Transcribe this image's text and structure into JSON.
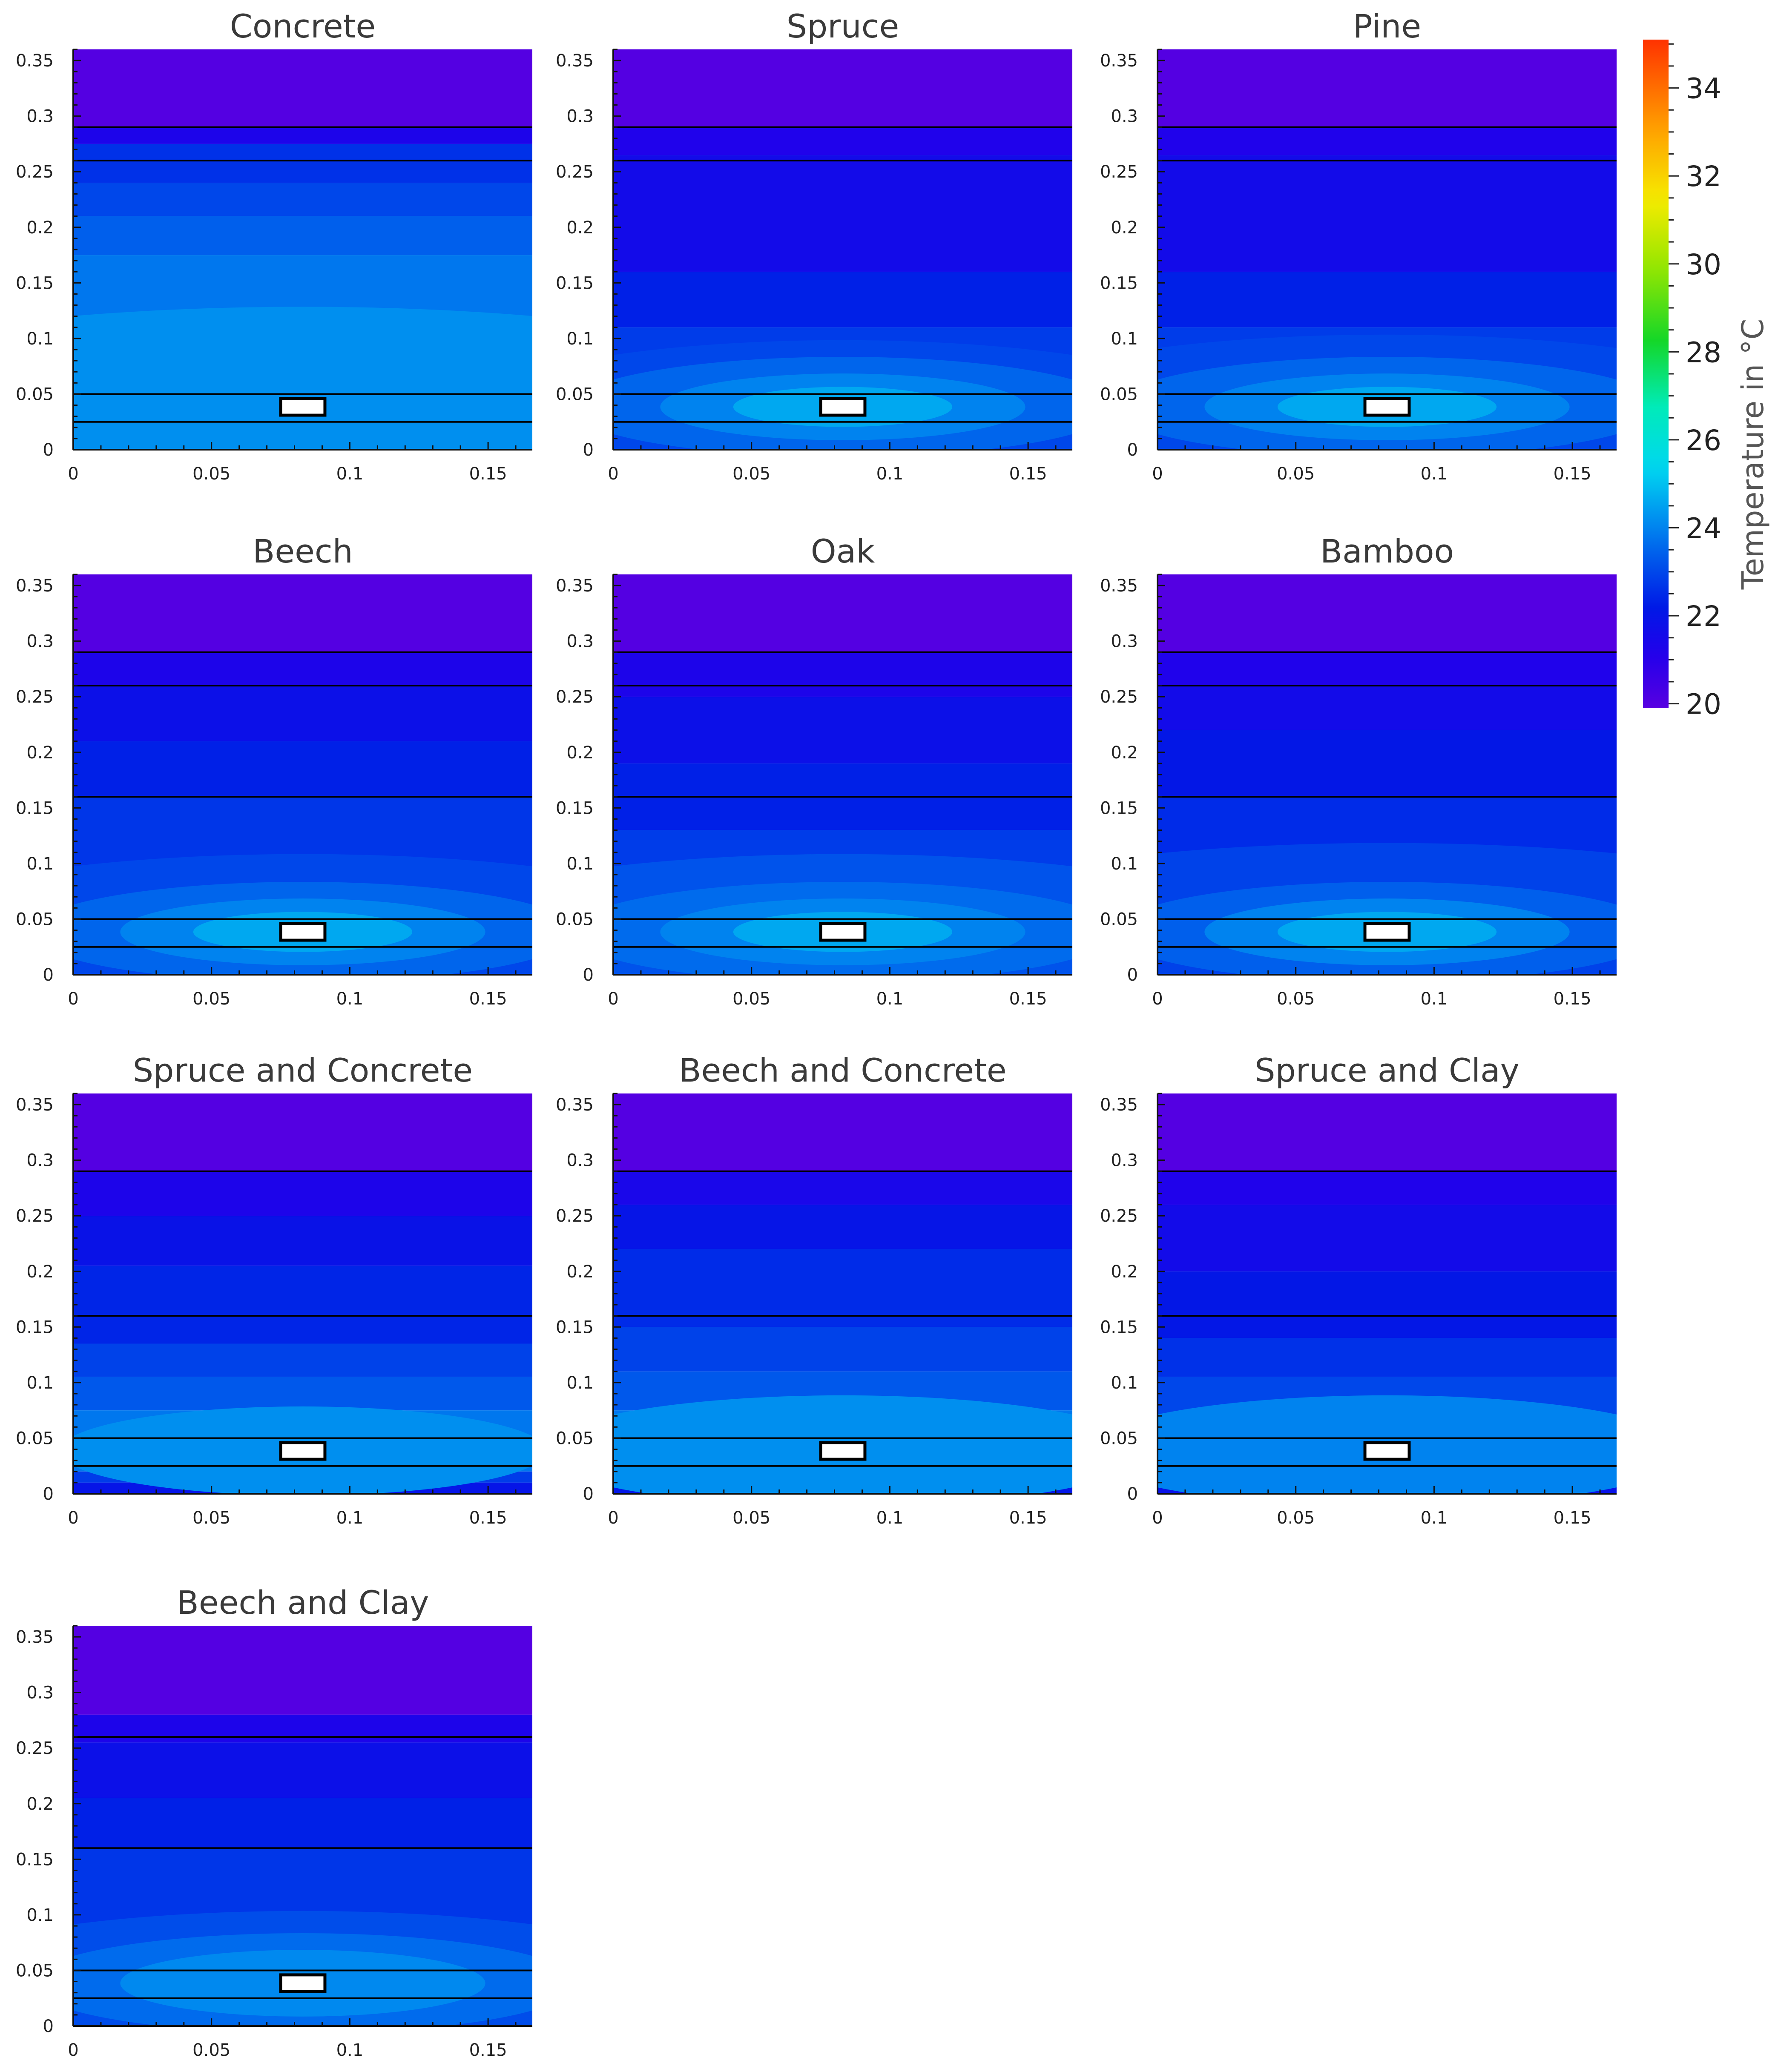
{
  "chart_data": {
    "type": "heatmap",
    "x_ticks": [
      "0",
      "0.05",
      "0.1",
      "0.15"
    ],
    "y_ticks": [
      "0",
      "0.05",
      "0.1",
      "0.15",
      "0.2",
      "0.25",
      "0.3",
      "0.35"
    ],
    "xlim": [
      0,
      0.166
    ],
    "ylim": [
      0,
      0.36
    ],
    "heater": {
      "x_range": [
        0.075,
        0.091
      ],
      "y_range": [
        0.031,
        0.046
      ]
    },
    "colorbar": {
      "label": "Temperature in °C",
      "ticks": [
        "20",
        "22",
        "24",
        "26",
        "28",
        "30",
        "32",
        "34"
      ],
      "range": [
        19.9,
        35.1
      ]
    },
    "panels": [
      {
        "title": "Concrete",
        "layers": [
          0.025,
          0.05,
          0.26,
          0.29
        ],
        "bands": [
          {
            "top": 0.36,
            "temp": 20.0
          },
          {
            "top": 0.29,
            "temp": 21.3
          },
          {
            "top": 0.275,
            "temp": 22.6
          },
          {
            "top": 0.24,
            "temp": 23.0
          },
          {
            "top": 0.21,
            "temp": 23.4
          },
          {
            "top": 0.175,
            "temp": 23.8
          },
          {
            "top": 0.025,
            "temp": 23.6
          },
          {
            "top": 0.012,
            "temp": 23.2
          }
        ],
        "hot": [
          {
            "ry": 0.09,
            "temp": 24.2
          }
        ]
      },
      {
        "title": "Spruce",
        "layers": [
          0.025,
          0.05,
          0.26,
          0.29
        ],
        "bands": [
          {
            "top": 0.36,
            "temp": 20.0
          },
          {
            "top": 0.29,
            "temp": 21.2
          },
          {
            "top": 0.265,
            "temp": 21.6
          },
          {
            "top": 0.16,
            "temp": 22.3
          },
          {
            "top": 0.11,
            "temp": 22.8
          },
          {
            "top": 0.03,
            "temp": 22.3
          },
          {
            "top": 0.015,
            "temp": 21.8
          }
        ],
        "hot": [
          {
            "ry": 0.06,
            "temp": 23.0
          },
          {
            "ry": 0.045,
            "temp": 23.5
          },
          {
            "ry": 0.03,
            "temp": 24.0
          },
          {
            "ry": 0.018,
            "temp": 24.6
          }
        ]
      },
      {
        "title": "Pine",
        "layers": [
          0.025,
          0.05,
          0.26,
          0.29
        ],
        "bands": [
          {
            "top": 0.36,
            "temp": 20.0
          },
          {
            "top": 0.29,
            "temp": 21.2
          },
          {
            "top": 0.265,
            "temp": 21.6
          },
          {
            "top": 0.16,
            "temp": 22.3
          },
          {
            "top": 0.11,
            "temp": 22.8
          },
          {
            "top": 0.03,
            "temp": 22.3
          },
          {
            "top": 0.015,
            "temp": 21.8
          }
        ],
        "hot": [
          {
            "ry": 0.065,
            "temp": 23.0
          },
          {
            "ry": 0.045,
            "temp": 23.5
          },
          {
            "ry": 0.03,
            "temp": 24.0
          },
          {
            "ry": 0.018,
            "temp": 24.6
          }
        ]
      },
      {
        "title": "Beech",
        "layers": [
          0.025,
          0.05,
          0.16,
          0.26,
          0.29
        ],
        "bands": [
          {
            "top": 0.36,
            "temp": 20.0
          },
          {
            "top": 0.29,
            "temp": 21.3
          },
          {
            "top": 0.26,
            "temp": 21.8
          },
          {
            "top": 0.21,
            "temp": 22.3
          },
          {
            "top": 0.16,
            "temp": 22.7
          },
          {
            "top": 0.035,
            "temp": 22.4
          },
          {
            "top": 0.018,
            "temp": 21.9
          }
        ],
        "hot": [
          {
            "ry": 0.07,
            "temp": 23.0
          },
          {
            "ry": 0.045,
            "temp": 23.5
          },
          {
            "ry": 0.03,
            "temp": 24.0
          },
          {
            "ry": 0.018,
            "temp": 24.6
          }
        ]
      },
      {
        "title": "Oak",
        "layers": [
          0.025,
          0.05,
          0.16,
          0.26,
          0.29
        ],
        "bands": [
          {
            "top": 0.36,
            "temp": 20.0
          },
          {
            "top": 0.29,
            "temp": 21.3
          },
          {
            "top": 0.25,
            "temp": 21.8
          },
          {
            "top": 0.19,
            "temp": 22.3
          },
          {
            "top": 0.13,
            "temp": 22.8
          },
          {
            "top": 0.035,
            "temp": 22.4
          },
          {
            "top": 0.018,
            "temp": 21.9
          }
        ],
        "hot": [
          {
            "ry": 0.07,
            "temp": 23.2
          },
          {
            "ry": 0.045,
            "temp": 23.6
          },
          {
            "ry": 0.03,
            "temp": 24.0
          },
          {
            "ry": 0.018,
            "temp": 24.6
          }
        ]
      },
      {
        "title": "Bamboo",
        "layers": [
          0.025,
          0.05,
          0.16,
          0.26,
          0.29
        ],
        "bands": [
          {
            "top": 0.36,
            "temp": 20.0
          },
          {
            "top": 0.29,
            "temp": 21.2
          },
          {
            "top": 0.26,
            "temp": 21.6
          },
          {
            "top": 0.22,
            "temp": 22.1
          },
          {
            "top": 0.16,
            "temp": 22.5
          },
          {
            "top": 0.035,
            "temp": 22.2
          },
          {
            "top": 0.018,
            "temp": 21.8
          }
        ],
        "hot": [
          {
            "ry": 0.08,
            "temp": 22.9
          },
          {
            "ry": 0.045,
            "temp": 23.4
          },
          {
            "ry": 0.03,
            "temp": 24.0
          },
          {
            "ry": 0.018,
            "temp": 24.6
          }
        ]
      },
      {
        "title": "Spruce and Concrete",
        "layers": [
          0.025,
          0.05,
          0.16,
          0.29
        ],
        "bands": [
          {
            "top": 0.36,
            "temp": 20.0
          },
          {
            "top": 0.29,
            "temp": 21.3
          },
          {
            "top": 0.25,
            "temp": 21.9
          },
          {
            "top": 0.205,
            "temp": 22.4
          },
          {
            "top": 0.135,
            "temp": 22.9
          },
          {
            "top": 0.105,
            "temp": 23.3
          },
          {
            "top": 0.075,
            "temp": 23.8
          },
          {
            "top": 0.02,
            "temp": 22.8
          },
          {
            "top": 0.01,
            "temp": 22.0
          }
        ],
        "hot": [
          {
            "ry": 0.04,
            "temp": 24.2
          }
        ]
      },
      {
        "title": "Beech and Concrete",
        "layers": [
          0.025,
          0.05,
          0.16,
          0.29
        ],
        "bands": [
          {
            "top": 0.36,
            "temp": 20.0
          },
          {
            "top": 0.29,
            "temp": 21.4
          },
          {
            "top": 0.26,
            "temp": 22.0
          },
          {
            "top": 0.22,
            "temp": 22.5
          },
          {
            "top": 0.15,
            "temp": 22.9
          },
          {
            "top": 0.11,
            "temp": 23.3
          },
          {
            "top": 0.075,
            "temp": 23.8
          },
          {
            "top": 0.025,
            "temp": 22.9
          },
          {
            "top": 0.012,
            "temp": 22.1
          }
        ],
        "hot": [
          {
            "ry": 0.05,
            "temp": 24.2
          }
        ]
      },
      {
        "title": "Spruce and Clay",
        "layers": [
          0.025,
          0.05,
          0.16,
          0.29
        ],
        "bands": [
          {
            "top": 0.36,
            "temp": 20.0
          },
          {
            "top": 0.29,
            "temp": 21.2
          },
          {
            "top": 0.26,
            "temp": 21.6
          },
          {
            "top": 0.2,
            "temp": 22.1
          },
          {
            "top": 0.14,
            "temp": 22.6
          },
          {
            "top": 0.105,
            "temp": 23.0
          },
          {
            "top": 0.07,
            "temp": 23.5
          },
          {
            "top": 0.02,
            "temp": 22.6
          },
          {
            "top": 0.01,
            "temp": 21.9
          }
        ],
        "hot": [
          {
            "ry": 0.05,
            "temp": 24.0
          }
        ]
      },
      {
        "title": "Beech and Clay",
        "layers": [
          0.025,
          0.05,
          0.16,
          0.26
        ],
        "bands": [
          {
            "top": 0.36,
            "temp": 20.0
          },
          {
            "top": 0.28,
            "temp": 21.3
          },
          {
            "top": 0.255,
            "temp": 21.8
          },
          {
            "top": 0.205,
            "temp": 22.3
          },
          {
            "top": 0.16,
            "temp": 22.7
          },
          {
            "top": 0.035,
            "temp": 22.4
          },
          {
            "top": 0.018,
            "temp": 21.9
          }
        ],
        "hot": [
          {
            "ry": 0.065,
            "temp": 23.1
          },
          {
            "ry": 0.045,
            "temp": 23.6
          },
          {
            "ry": 0.03,
            "temp": 24.1
          }
        ]
      }
    ]
  }
}
